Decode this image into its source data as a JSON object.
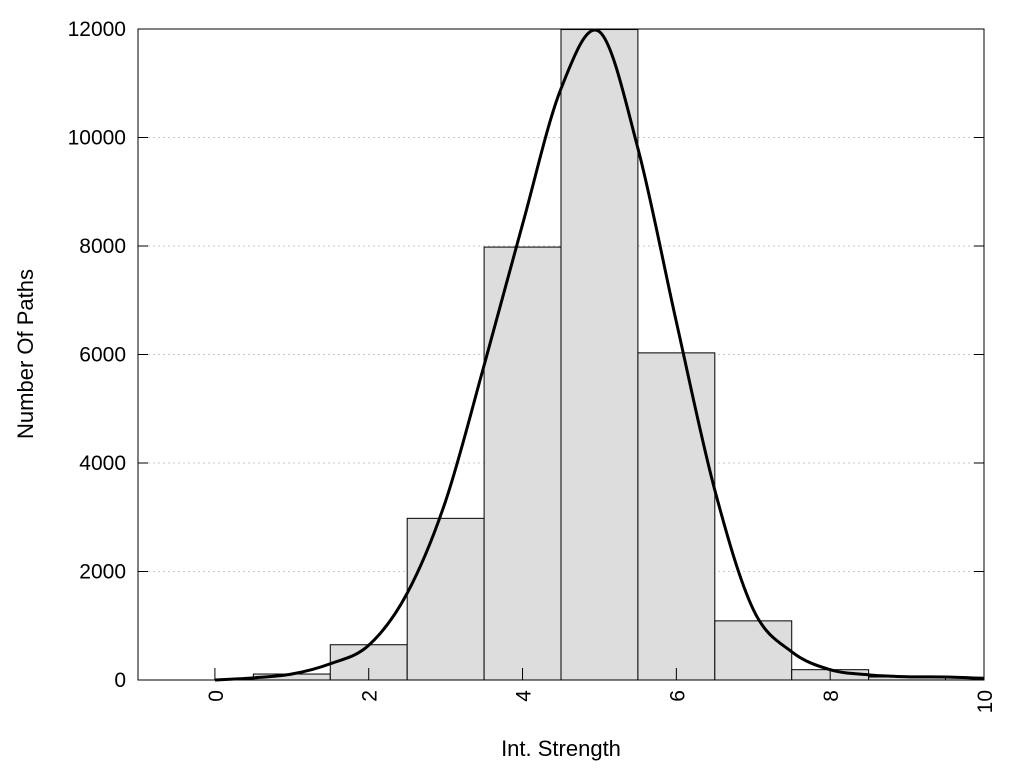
{
  "chart_data": {
    "type": "bar",
    "xlabel": "Int. Strength",
    "ylabel": "Number Of Paths",
    "xlim": [
      -1,
      10
    ],
    "ylim": [
      0,
      12000
    ],
    "x_ticks": [
      "0",
      "2",
      "4",
      "6",
      "8",
      "10"
    ],
    "y_ticks": [
      "0",
      "2000",
      "4000",
      "6000",
      "8000",
      "10000",
      "12000"
    ],
    "grid": "horizontal dotted",
    "bars": {
      "x": [
        0,
        1,
        2,
        3,
        4,
        5,
        6,
        7,
        8,
        9,
        10
      ],
      "values": [
        0,
        110,
        650,
        2980,
        7980,
        11990,
        6030,
        1090,
        190,
        55,
        50
      ],
      "width": 1,
      "color": "#dddddd"
    },
    "curve": {
      "x": [
        0,
        0.5,
        1,
        1.5,
        2,
        2.5,
        3,
        3.5,
        4,
        4.5,
        5,
        5.5,
        6,
        6.5,
        7,
        7.5,
        8,
        8.5,
        9,
        9.5,
        10
      ],
      "y": [
        0,
        40,
        110,
        300,
        640,
        1600,
        3300,
        5800,
        8400,
        10900,
        11950,
        9800,
        6600,
        3500,
        1300,
        520,
        190,
        95,
        60,
        55,
        30
      ],
      "color": "#000000"
    }
  }
}
